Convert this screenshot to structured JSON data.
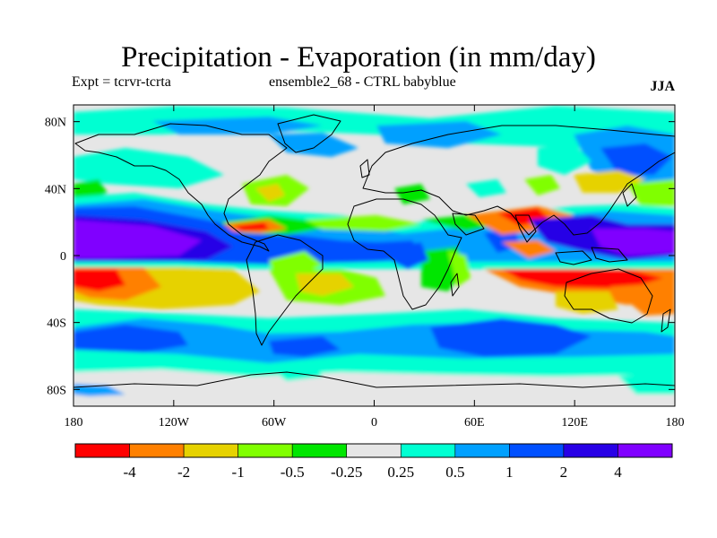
{
  "title": "Precipitation - Evaporation (in mm/day)",
  "subtitle_left": "Expt = tcrvr-tcrta",
  "subtitle_center": "ensemble2_68 - CTRL babyblue",
  "season": "JJA",
  "map": {
    "lat_labels": [
      "80N",
      "40N",
      "0",
      "40S",
      "80S"
    ],
    "lon_labels": [
      "180",
      "120W",
      "60W",
      "0",
      "60E",
      "120E",
      "180"
    ],
    "lat_values": [
      80,
      40,
      0,
      -40,
      -80
    ],
    "lon_values": [
      -180,
      -120,
      -60,
      0,
      60,
      120,
      180
    ]
  },
  "colorbar": {
    "colors": [
      "#ff0000",
      "#ff8000",
      "#e6d200",
      "#80ff00",
      "#00e600",
      "#e6e6e6",
      "#00ffd2",
      "#00a0ff",
      "#0050ff",
      "#2800e6",
      "#8000ff"
    ],
    "labels": [
      "-4",
      "-2",
      "-1",
      "-0.5",
      "-0.25",
      "0.25",
      "0.5",
      "1",
      "2",
      "4"
    ]
  },
  "colors": {
    "frame": "#000000",
    "background": "#ffffff"
  }
}
